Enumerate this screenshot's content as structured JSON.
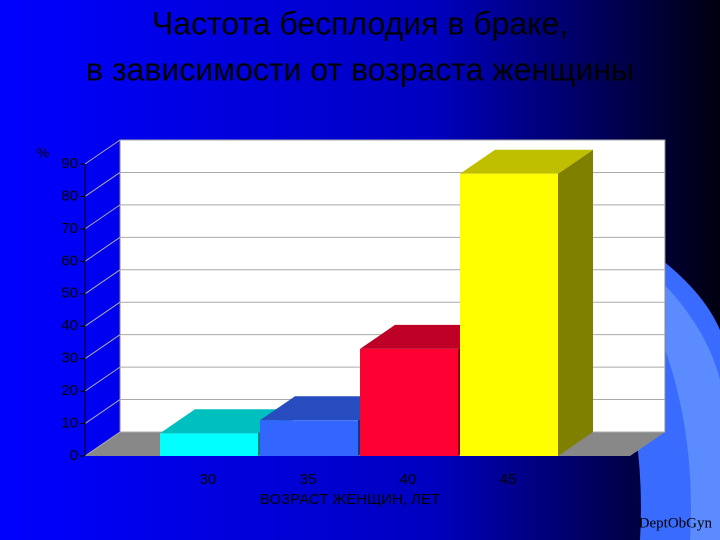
{
  "chart_data": {
    "type": "bar3d",
    "title": [
      "Частота бесплодия в браке,",
      "в зависимости от возраста женщины"
    ],
    "y_label": "%",
    "x_label": "ВОЗРАСТ ЖЕНЩИН, ЛЕТ",
    "categories": [
      "30",
      "35",
      "40",
      "45"
    ],
    "values": [
      7,
      11,
      33,
      87
    ],
    "colors": [
      "#00ffff",
      "#3366ff",
      "#ff0033",
      "#ffff00"
    ],
    "ylim": [
      0,
      90
    ],
    "yticks": [
      0,
      10,
      20,
      30,
      40,
      50,
      60,
      70,
      80,
      90
    ],
    "grid": true,
    "footer": "DeptObGyn"
  }
}
